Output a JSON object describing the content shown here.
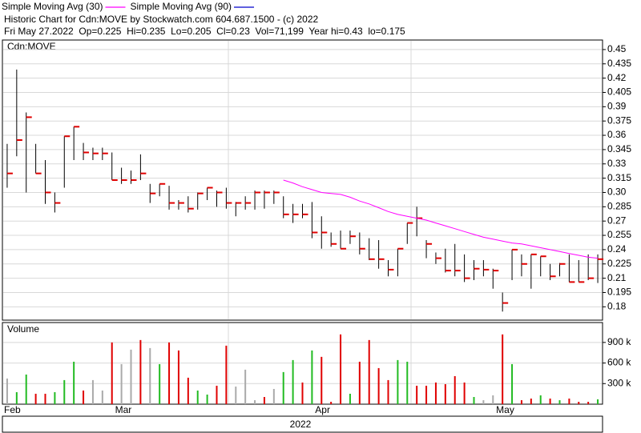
{
  "chart_data": {
    "type": "ohlc",
    "title": "Historic Chart for Cdn:MOVE by Stockwatch.com 604.687.1500 - (c) 2022",
    "subtitle": "Fri May 27.2022  Op=0.225  Hi=0.235  Lo=0.205  Cl=0.23  Vol=71,199  Year hi=0.43  lo=0.175",
    "panel_label": "Cdn:MOVE",
    "year_label": "2022",
    "categories": [
      "Feb",
      null,
      null,
      null,
      null,
      null,
      null,
      null,
      null,
      null,
      null,
      null,
      "Mar",
      null,
      null,
      null,
      null,
      null,
      null,
      null,
      null,
      null,
      null,
      null,
      null,
      null,
      null,
      null,
      null,
      null,
      null,
      null,
      null,
      "Apr",
      null,
      null,
      null,
      null,
      null,
      null,
      null,
      null,
      null,
      null,
      null,
      null,
      null,
      null,
      null,
      null,
      null,
      null,
      "May",
      null,
      null,
      null,
      null,
      null,
      null,
      null,
      null,
      null,
      null
    ],
    "high": [
      0.351,
      0.429,
      0.384,
      0.351,
      0.334,
      0.3,
      0.359,
      0.369,
      0.352,
      0.347,
      0.347,
      0.342,
      0.326,
      0.323,
      0.34,
      0.309,
      0.309,
      0.307,
      0.292,
      0.296,
      0.3,
      0.305,
      0.302,
      0.305,
      0.29,
      0.296,
      0.302,
      0.302,
      0.302,
      0.296,
      0.288,
      0.288,
      0.29,
      0.275,
      0.258,
      0.26,
      0.26,
      0.258,
      0.252,
      0.25,
      0.229,
      0.241,
      0.268,
      0.285,
      0.25,
      0.237,
      0.241,
      0.246,
      0.235,
      0.229,
      0.229,
      0.22,
      0.195,
      0.24,
      0.235,
      0.235,
      0.233,
      0.225,
      0.226,
      0.235,
      0.229,
      0.235,
      0.235
    ],
    "low": [
      0.305,
      0.338,
      0.3,
      0.32,
      0.288,
      0.279,
      0.305,
      0.334,
      0.334,
      0.334,
      0.334,
      0.313,
      0.309,
      0.309,
      0.313,
      0.289,
      0.296,
      0.282,
      0.282,
      0.279,
      0.282,
      0.292,
      0.285,
      0.283,
      0.275,
      0.282,
      0.282,
      0.283,
      0.288,
      0.273,
      0.268,
      0.273,
      0.252,
      0.241,
      0.243,
      0.241,
      0.246,
      0.235,
      0.229,
      0.22,
      0.212,
      0.212,
      0.246,
      0.254,
      0.231,
      0.225,
      0.216,
      0.212,
      0.206,
      0.208,
      0.212,
      0.199,
      0.175,
      0.208,
      0.212,
      0.199,
      0.212,
      0.208,
      0.212,
      0.206,
      0.206,
      0.208,
      0.205
    ],
    "close": [
      0.32,
      0.355,
      0.379,
      0.32,
      0.3,
      0.289,
      0.359,
      0.369,
      0.342,
      0.341,
      0.341,
      0.313,
      0.313,
      0.313,
      0.32,
      0.299,
      0.309,
      0.289,
      0.289,
      0.283,
      0.299,
      0.305,
      0.3,
      0.289,
      0.289,
      0.289,
      0.3,
      0.3,
      0.3,
      0.277,
      0.277,
      0.277,
      0.258,
      0.258,
      0.246,
      0.241,
      0.254,
      0.241,
      0.23,
      0.23,
      0.219,
      0.241,
      0.268,
      0.273,
      0.246,
      0.231,
      0.218,
      0.218,
      0.21,
      0.22,
      0.219,
      0.218,
      0.184,
      0.24,
      0.225,
      0.235,
      0.233,
      0.212,
      0.225,
      0.206,
      0.206,
      0.21,
      0.23
    ],
    "bar_color": "#000000",
    "close_color": "#e00000",
    "series": [
      {
        "name": "Simple Moving Avg (30)",
        "color": "#ff00ff",
        "values": [
          null,
          null,
          null,
          null,
          null,
          null,
          null,
          null,
          null,
          null,
          null,
          null,
          null,
          null,
          null,
          null,
          null,
          null,
          null,
          null,
          null,
          null,
          null,
          null,
          null,
          null,
          null,
          null,
          null,
          0.313,
          0.31,
          0.306,
          0.303,
          0.3,
          0.299,
          0.298,
          0.295,
          0.291,
          0.288,
          0.284,
          0.28,
          0.277,
          0.275,
          0.273,
          0.271,
          0.268,
          0.265,
          0.262,
          0.259,
          0.256,
          0.253,
          0.251,
          0.249,
          0.247,
          0.246,
          0.244,
          0.242,
          0.24,
          0.238,
          0.236,
          0.234,
          0.232,
          0.231
        ]
      },
      {
        "name": "Simple Moving Avg (90)",
        "color": "#0000cc",
        "values": [
          null,
          null,
          null,
          null,
          null,
          null,
          null,
          null,
          null,
          null,
          null,
          null,
          null,
          null,
          null,
          null,
          null,
          null,
          null,
          null,
          null,
          null,
          null,
          null,
          null,
          null,
          null,
          null,
          null,
          null,
          null,
          null,
          null,
          null,
          null,
          null,
          null,
          null,
          null,
          null,
          null,
          null,
          null,
          null,
          null,
          null,
          null,
          null,
          null,
          null,
          null,
          null,
          null,
          null,
          null,
          null,
          null,
          null,
          null,
          null,
          null,
          null,
          null
        ]
      }
    ],
    "ylim": [
      0.166,
      0.46
    ],
    "yticks": [
      0.18,
      0.195,
      0.21,
      0.225,
      0.24,
      0.255,
      0.27,
      0.285,
      {
        "value": 0.3,
        "label": "0.30"
      },
      0.315,
      0.33,
      0.345,
      0.36,
      0.375,
      0.39,
      0.405,
      0.42,
      0.435,
      0.45
    ],
    "grid": true,
    "volume": {
      "label": "Volume",
      "values": [
        374000,
        175000,
        432000,
        152000,
        152000,
        175000,
        351000,
        619000,
        199000,
        351000,
        199000,
        900000,
        584000,
        795000,
        935000,
        818000,
        584000,
        900000,
        783000,
        386000,
        199000,
        140000,
        269000,
        853000,
        257000,
        503000,
        58000,
        105000,
        222000,
        468000,
        643000,
        316000,
        783000,
        690000,
        35000,
        1017000,
        152000,
        619000,
        935000,
        526000,
        351000,
        643000,
        619000,
        269000,
        269000,
        316000,
        292000,
        409000,
        316000,
        105000,
        58000,
        129000,
        1017000,
        584000,
        58000,
        82000,
        129000,
        82000,
        58000,
        82000,
        35000,
        35000,
        71199
      ],
      "colors": [
        "#aaaaaa",
        "#22bb22",
        "#22bb22",
        "#e00000",
        "#e00000",
        "#22bb22",
        "#22bb22",
        "#22bb22",
        "#e00000",
        "#aaaaaa",
        "#aaaaaa",
        "#e00000",
        "#aaaaaa",
        "#aaaaaa",
        "#e00000",
        "#aaaaaa",
        "#22bb22",
        "#e00000",
        "#e00000",
        "#e00000",
        "#22bb22",
        "#22bb22",
        "#e00000",
        "#e00000",
        "#aaaaaa",
        "#aaaaaa",
        "#aaaaaa",
        "#e00000",
        "#aaaaaa",
        "#22bb22",
        "#22bb22",
        "#e00000",
        "#22bb22",
        "#e00000",
        "#e00000",
        "#e00000",
        "#22bb22",
        "#e00000",
        "#e00000",
        "#e00000",
        "#e00000",
        "#22bb22",
        "#22bb22",
        "#e00000",
        "#e00000",
        "#e00000",
        "#e00000",
        "#e00000",
        "#e00000",
        "#22bb22",
        "#aaaaaa",
        "#aaaaaa",
        "#e00000",
        "#22bb22",
        "#e00000",
        "#e00000",
        "#22bb22",
        "#e00000",
        "#22bb22",
        "#e00000",
        "#e00000",
        "#e00000",
        "#22bb22"
      ],
      "ylim": [
        0,
        1190000
      ],
      "yticks": [
        {
          "value": 300000,
          "label": "300 k"
        },
        {
          "value": 600000,
          "label": "600 k"
        },
        {
          "value": 900000,
          "label": "900 k"
        }
      ]
    }
  }
}
